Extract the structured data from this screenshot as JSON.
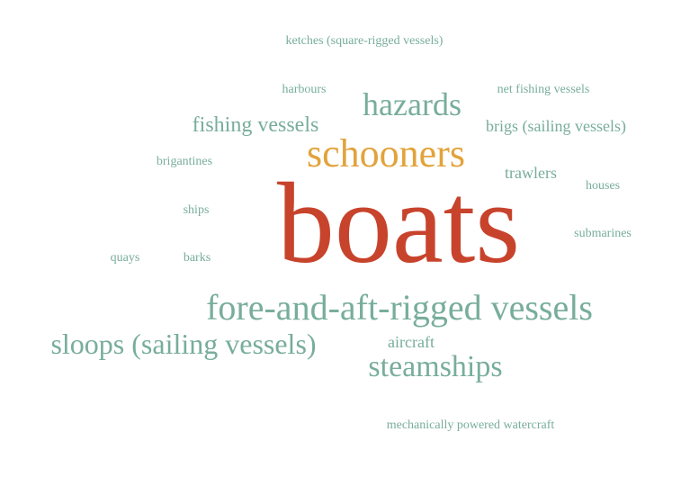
{
  "colors": {
    "primary": "#78ad9c",
    "accent_orange": "#e2a33b",
    "accent_red": "#c8432c",
    "background": "#ffffff"
  },
  "words": [
    {
      "text": "ketches (square-rigged vessels)"
    },
    {
      "text": "harbours"
    },
    {
      "text": "hazards"
    },
    {
      "text": "net fishing vessels"
    },
    {
      "text": "fishing vessels"
    },
    {
      "text": "brigs (sailing vessels)"
    },
    {
      "text": "schooners"
    },
    {
      "text": "brigantines"
    },
    {
      "text": "trawlers"
    },
    {
      "text": "houses"
    },
    {
      "text": "ships"
    },
    {
      "text": "boats"
    },
    {
      "text": "submarines"
    },
    {
      "text": "quays"
    },
    {
      "text": "barks"
    },
    {
      "text": "fore-and-aft-rigged vessels"
    },
    {
      "text": "sloops (sailing vessels)"
    },
    {
      "text": "aircraft"
    },
    {
      "text": "steamships"
    },
    {
      "text": "mechanically powered watercraft"
    }
  ]
}
